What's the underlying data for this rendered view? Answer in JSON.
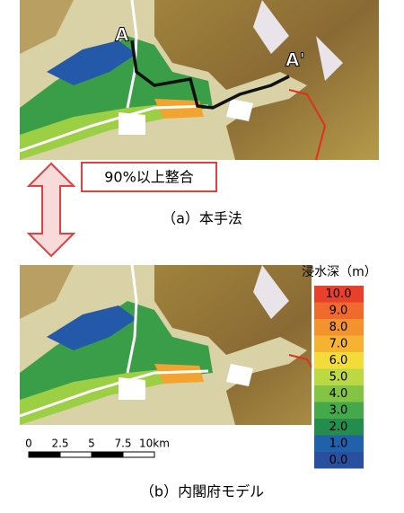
{
  "panel_a": {
    "label_a": "A",
    "label_a_prime": "A'",
    "callout": "90%以上整合",
    "caption": "（a）本手法"
  },
  "panel_b": {
    "caption": "（b）内閣府モデル"
  },
  "legend": {
    "title": "浸水深（m）",
    "items": [
      {
        "label": "10.0",
        "color": "#e8402a"
      },
      {
        "label": "9.0",
        "color": "#ef6a2c"
      },
      {
        "label": "8.0",
        "color": "#f3932e"
      },
      {
        "label": "7.0",
        "color": "#f6b331"
      },
      {
        "label": "6.0",
        "color": "#f3dc3a"
      },
      {
        "label": "5.0",
        "color": "#bcd842"
      },
      {
        "label": "4.0",
        "color": "#84c445"
      },
      {
        "label": "3.0",
        "color": "#45a94b"
      },
      {
        "label": "2.0",
        "color": "#248c4d"
      },
      {
        "label": "1.0",
        "color": "#2160ab"
      },
      {
        "label": "0.0",
        "color": "#2a4f9e"
      }
    ]
  },
  "scale_bar": {
    "labels": [
      "0",
      "2.5",
      "5",
      "7.5",
      "10km"
    ]
  }
}
